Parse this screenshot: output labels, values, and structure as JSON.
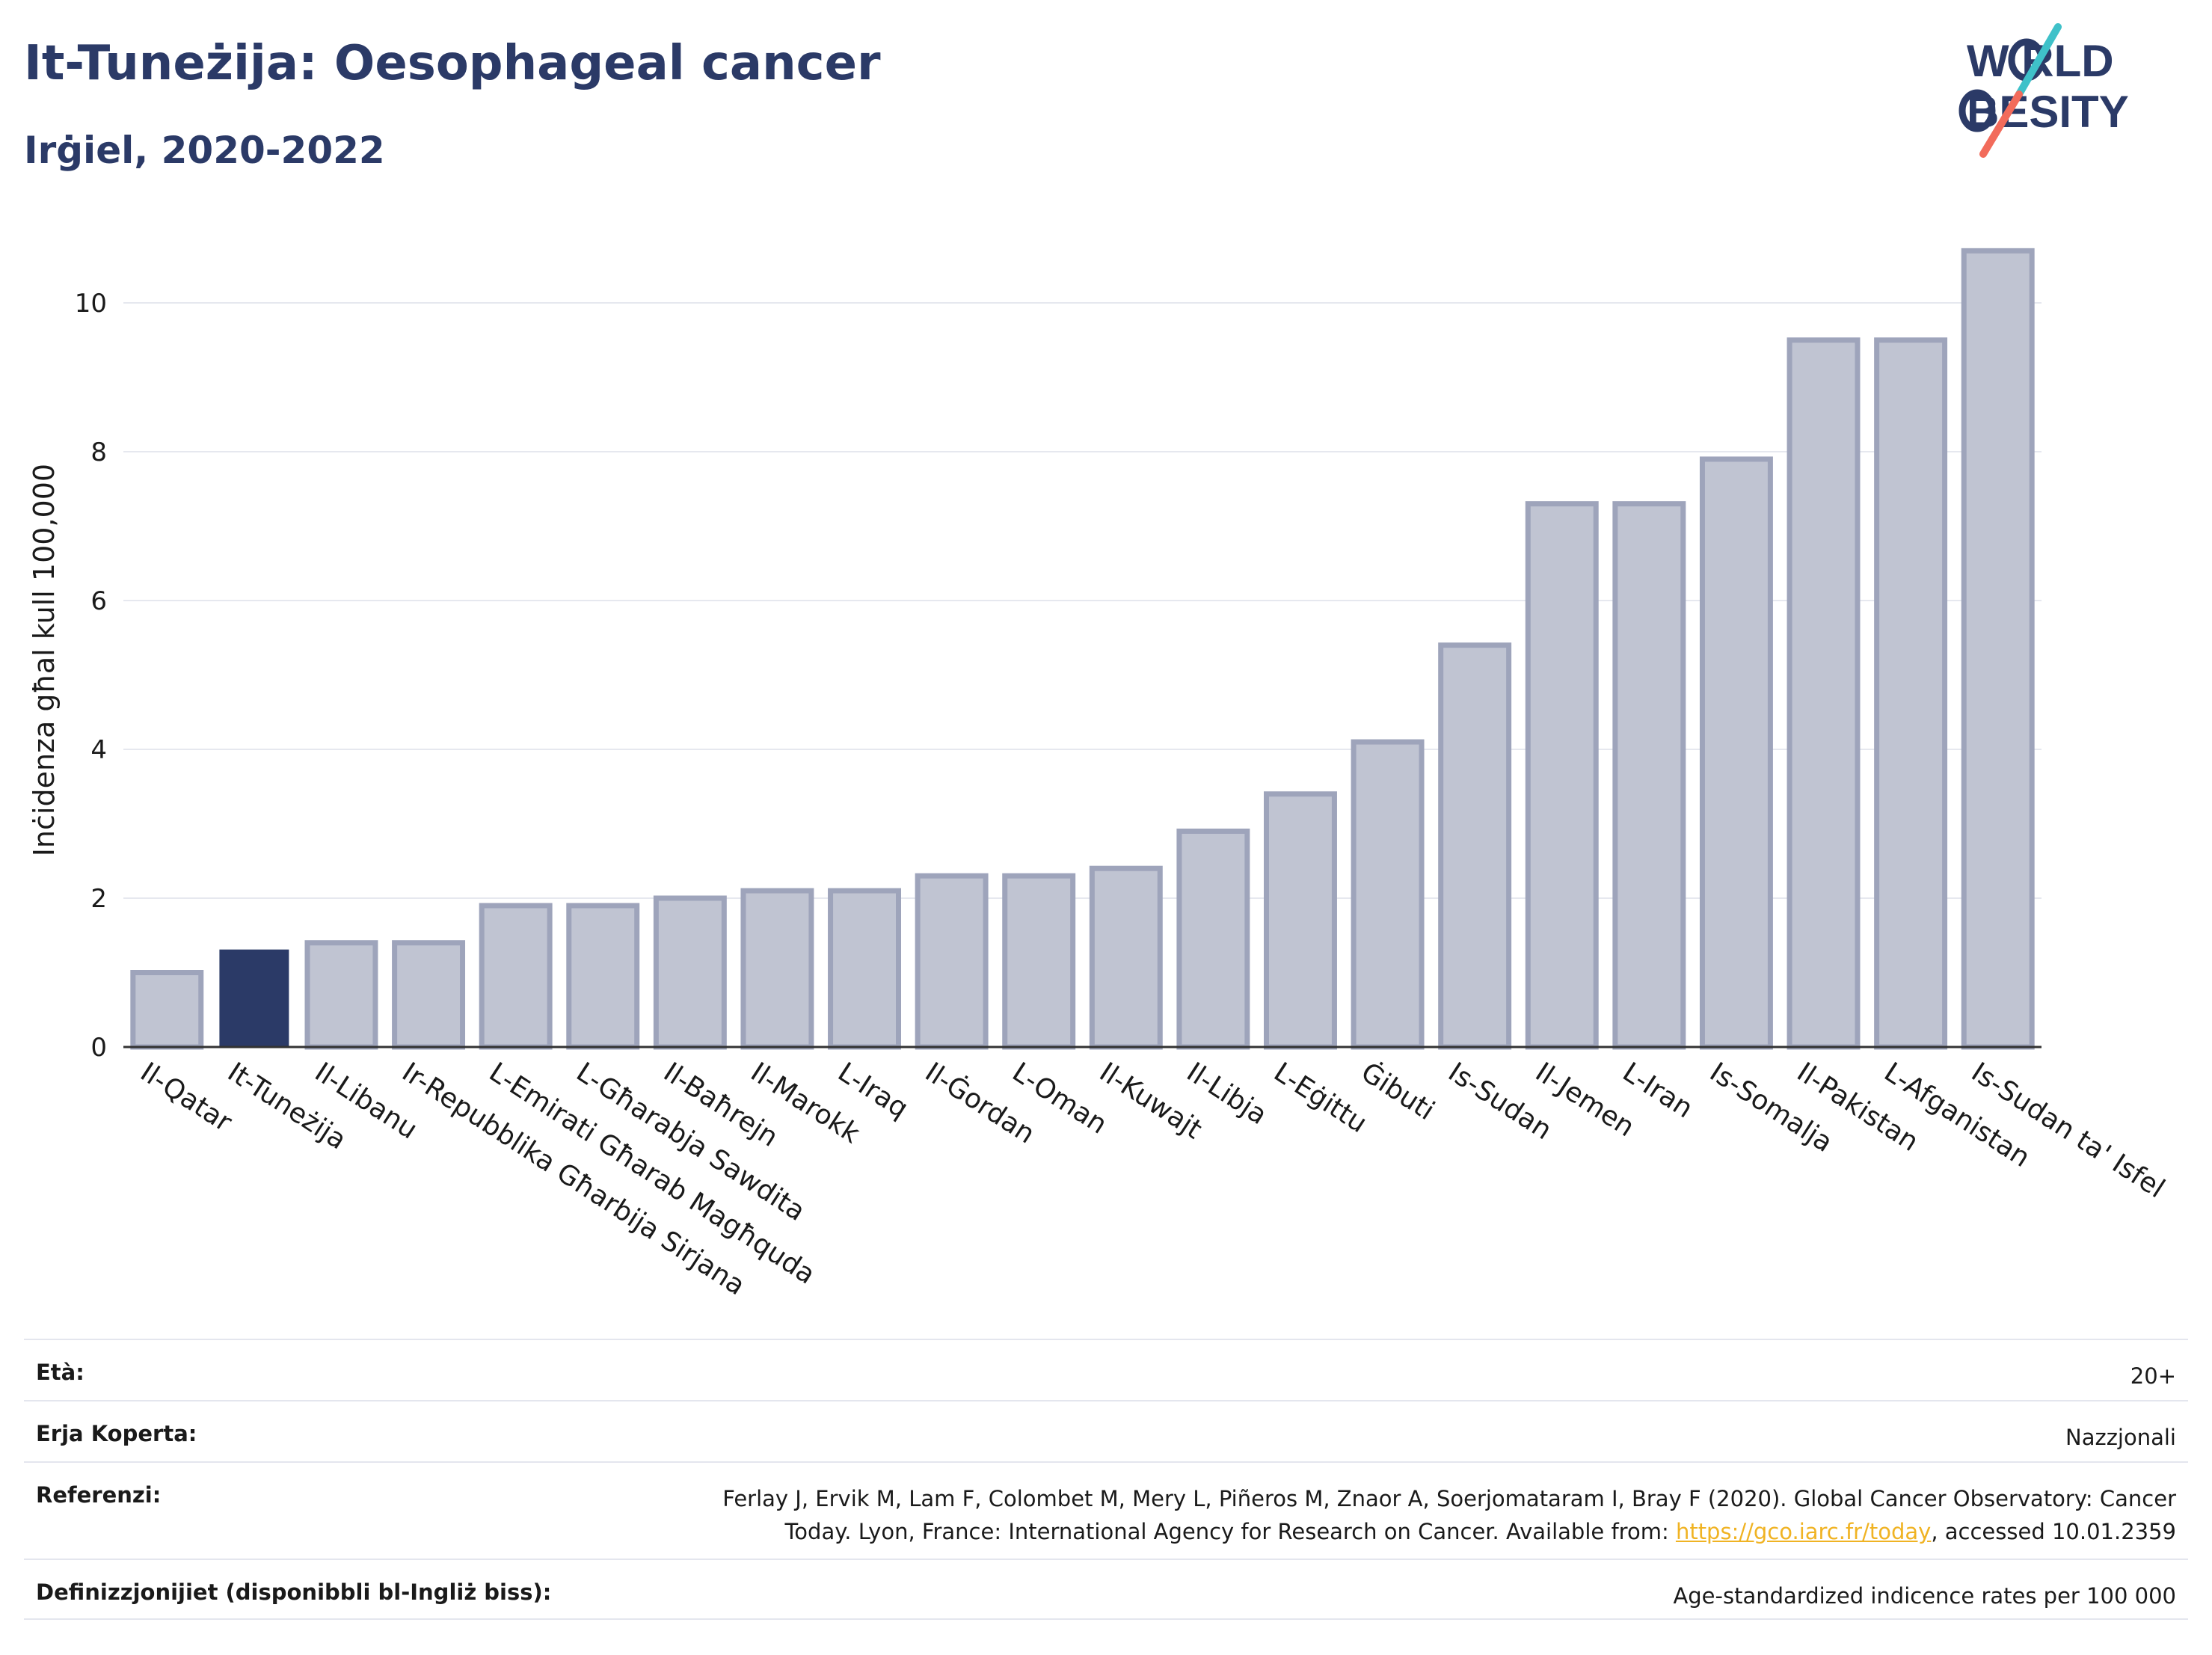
{
  "header": {
    "title": "It-Tuneżija: Oesophageal cancer",
    "subtitle": "Irġiel, 2020-2022"
  },
  "logo": {
    "line1": "W RLD",
    "line2": "BESITY",
    "brand_color": "#2b3a67",
    "accent_colors": [
      "#3fc1c9",
      "#f26b5b"
    ]
  },
  "chart_data": {
    "type": "bar",
    "ylabel": "Inċidenza għal kull 100,000",
    "ylim": [
      0,
      11.5
    ],
    "yticks": [
      0,
      2,
      4,
      6,
      8,
      10
    ],
    "grid": true,
    "highlight": "It-Tuneżija",
    "bar_color": "#c0c4d2",
    "bar_edge_color": "#9ea4bb",
    "highlight_color": "#2b3a67",
    "categories": [
      "Il-Qatar",
      "It-Tuneżija",
      "Il-Libanu",
      "Ir-Repubblika Għarbija Sirjana",
      "L-Emirati Għarab Magħquda",
      "L-Għarabja Sawdita",
      "Il-Baħrejn",
      "Il-Marokk",
      "L-Iraq",
      "Il-Ġordan",
      "L-Oman",
      "Il-Kuwajt",
      "Il-Libja",
      "L-Eġittu",
      "Ġibuti",
      "Is-Sudan",
      "Il-Jemen",
      "L-Iran",
      "Is-Somalja",
      "Il-Pakistan",
      "L-Afganistan",
      "Is-Sudan ta' Isfel"
    ],
    "values": [
      1.0,
      1.3,
      1.4,
      1.4,
      1.9,
      1.9,
      2.0,
      2.1,
      2.1,
      2.3,
      2.3,
      2.4,
      2.9,
      3.4,
      4.1,
      5.4,
      7.3,
      7.3,
      7.9,
      9.5,
      9.5,
      10.7
    ]
  },
  "meta": {
    "age_label": "Età:",
    "age_value": "20+",
    "area_label": "Erja Koperta:",
    "area_value": "Nazzjonali",
    "ref_label": "Referenzi:",
    "ref_line1": "Ferlay J, Ervik M, Lam F, Colombet M, Mery L, Piñeros M, Znaor A, Soerjomataram I, Bray F (2020). Global Cancer Observatory: Cancer",
    "ref_line2_pre": "Today. Lyon, France: International Agency for Research on Cancer. Available from: ",
    "ref_link": "https://gco.iarc.fr/today",
    "ref_line2_post": ", accessed 10.01.2359",
    "def_label": "Definizzjonijiet (disponibbli bl-Ingliż biss):",
    "def_value": "Age-standardized indicence rates per 100 000"
  }
}
